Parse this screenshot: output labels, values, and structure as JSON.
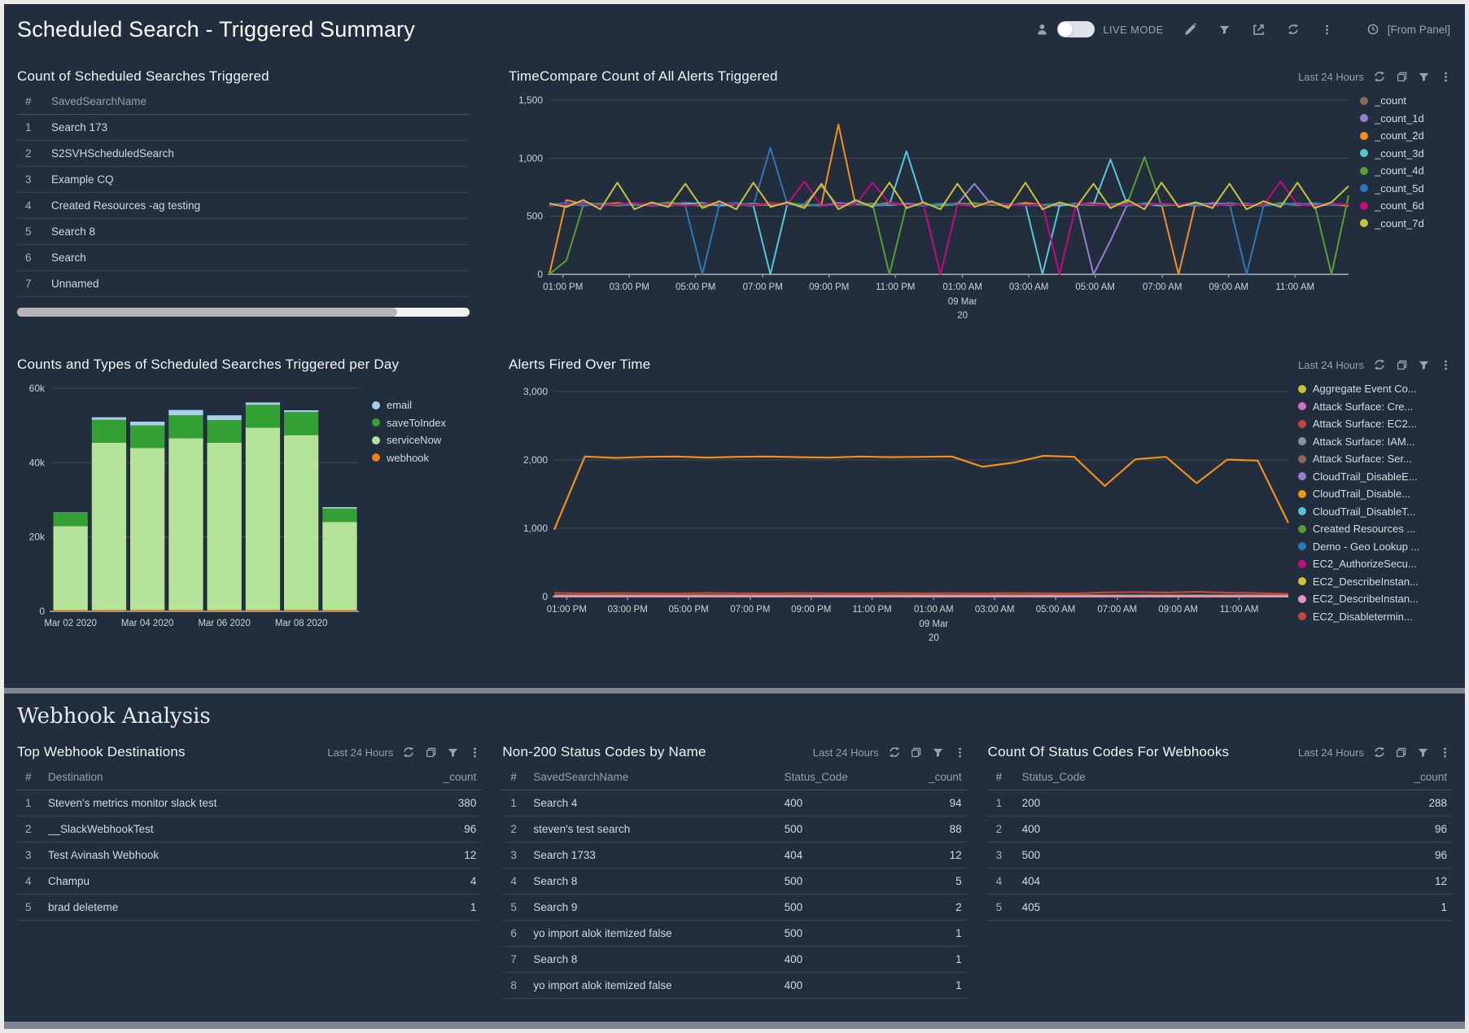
{
  "header": {
    "title": "Scheduled Search - Triggered Summary",
    "live_mode_label": "LIVE MODE",
    "from_panel_label": "[From Panel]"
  },
  "controls": {
    "time_range": "Last 24 Hours"
  },
  "panels": {
    "count_table": {
      "title": "Count of Scheduled Searches Triggered",
      "columns": [
        "#",
        "SavedSearchName"
      ],
      "aligns": [
        "left",
        "left"
      ],
      "rows": [
        [
          "1",
          "Search 173"
        ],
        [
          "2",
          "S2SVHScheduledSearch"
        ],
        [
          "3",
          "Example CQ"
        ],
        [
          "4",
          "Created Resources -ag testing"
        ],
        [
          "5",
          "Search 8"
        ],
        [
          "6",
          "Search"
        ],
        [
          "7",
          "Unnamed"
        ]
      ]
    },
    "timecompare": {
      "title": "TimeCompare Count of All Alerts Triggered"
    },
    "bars": {
      "title": "Counts and Types of Scheduled Searches Triggered per Day"
    },
    "alerts": {
      "title": "Alerts Fired Over Time"
    },
    "webhook_section_title": "Webhook Analysis",
    "top_webhooks": {
      "title": "Top Webhook Destinations",
      "columns": [
        "#",
        "Destination",
        "_count"
      ],
      "aligns": [
        "left",
        "left",
        "right"
      ],
      "rows": [
        [
          "1",
          "Steven's metrics monitor slack test",
          "380"
        ],
        [
          "2",
          "__SlackWebhookTest",
          "96"
        ],
        [
          "3",
          " Test Avinash Webhook",
          "12"
        ],
        [
          "4",
          "Champu",
          "4"
        ],
        [
          "5",
          "brad deleteme",
          "1"
        ]
      ]
    },
    "non200": {
      "title": "Non-200 Status Codes by Name",
      "columns": [
        "#",
        "SavedSearchName",
        "Status_Code",
        "_count"
      ],
      "aligns": [
        "left",
        "left",
        "left",
        "right"
      ],
      "rows": [
        [
          "1",
          "Search 4",
          "400",
          "94"
        ],
        [
          "2",
          "steven's test search",
          "500",
          "88"
        ],
        [
          "3",
          "Search 1733",
          "404",
          "12"
        ],
        [
          "4",
          "Search 8",
          "500",
          "5"
        ],
        [
          "5",
          "Search 9",
          "500",
          "2"
        ],
        [
          "6",
          "yo import alok itemized false",
          "500",
          "1"
        ],
        [
          "7",
          "Search 8",
          "400",
          "1"
        ],
        [
          "8",
          "yo import alok itemized false",
          "400",
          "1"
        ]
      ]
    },
    "status_codes": {
      "title": "Count Of Status Codes For Webhooks",
      "columns": [
        "#",
        "Status_Code",
        "_count"
      ],
      "aligns": [
        "left",
        "left",
        "right"
      ],
      "rows": [
        [
          "1",
          "200",
          "288"
        ],
        [
          "2",
          "400",
          "96"
        ],
        [
          "3",
          "500",
          "96"
        ],
        [
          "4",
          "404",
          "12"
        ],
        [
          "5",
          "405",
          "1"
        ]
      ]
    }
  },
  "chart_data": [
    {
      "type": "line",
      "title": "TimeCompare Count of All Alerts Triggered",
      "ylim": [
        0,
        1500
      ],
      "yticks": [
        {
          "v": 1500,
          "label": "1,500"
        },
        {
          "v": 1000,
          "label": "1,000"
        },
        {
          "v": 500,
          "label": "500"
        },
        {
          "v": 0,
          "label": "0"
        }
      ],
      "xticks": [
        {
          "f": 0.017,
          "label": "01:00 PM"
        },
        {
          "f": 0.1,
          "label": "03:00 PM"
        },
        {
          "f": 0.183,
          "label": "05:00 PM"
        },
        {
          "f": 0.267,
          "label": "07:00 PM"
        },
        {
          "f": 0.35,
          "label": "09:00 PM"
        },
        {
          "f": 0.433,
          "label": "11:00 PM"
        },
        {
          "f": 0.517,
          "label": "01:00 AM",
          "sub": [
            "09 Mar",
            "20"
          ]
        },
        {
          "f": 0.6,
          "label": "03:00 AM"
        },
        {
          "f": 0.683,
          "label": "05:00 AM"
        },
        {
          "f": 0.767,
          "label": "07:00 AM"
        },
        {
          "f": 0.85,
          "label": "09:00 AM"
        },
        {
          "f": 0.933,
          "label": "11:00 AM"
        }
      ],
      "series": [
        {
          "name": "_count",
          "color": "#8a6a5e",
          "values": [
            600,
            610,
            590,
            605,
            615,
            595,
            600,
            620,
            605,
            590,
            610,
            600,
            595,
            615,
            600,
            605,
            760,
            590,
            600,
            610,
            595,
            605,
            600,
            590,
            615,
            600,
            605,
            595,
            610,
            600,
            590,
            605,
            615,
            600,
            595,
            610,
            600,
            605,
            590,
            600,
            615,
            595,
            605,
            600,
            610,
            590,
            600,
            605
          ]
        },
        {
          "name": "_count_1d",
          "color": "#9a7fd1",
          "values": [
            590,
            605,
            615,
            595,
            600,
            610,
            590,
            600,
            615,
            605,
            590,
            600,
            610,
            595,
            605,
            600,
            590,
            615,
            600,
            605,
            595,
            610,
            600,
            590,
            605,
            780,
            600,
            595,
            615,
            600,
            590,
            605,
            0,
            290,
            605,
            595,
            610,
            600,
            590,
            615,
            605,
            600,
            595,
            600,
            610,
            590,
            600,
            595
          ]
        },
        {
          "name": "_count_2d",
          "color": "#f39019",
          "values": [
            0,
            640,
            605,
            590,
            615,
            600,
            595,
            610,
            600,
            590,
            605,
            615,
            595,
            600,
            610,
            590,
            600,
            1290,
            605,
            595,
            615,
            600,
            590,
            610,
            600,
            595,
            605,
            590,
            615,
            600,
            605,
            595,
            610,
            600,
            590,
            605,
            600,
            0,
            615,
            595,
            605,
            600,
            590,
            610,
            595,
            605,
            600,
            590
          ]
        },
        {
          "name": "_count_3d",
          "color": "#55c7d6",
          "values": [
            605,
            590,
            615,
            600,
            595,
            610,
            600,
            590,
            605,
            615,
            595,
            600,
            590,
            0,
            610,
            600,
            595,
            605,
            615,
            590,
            600,
            1060,
            595,
            605,
            600,
            590,
            615,
            600,
            605,
            0,
            590,
            610,
            600,
            990,
            595,
            605,
            590,
            600,
            615,
            600,
            595,
            610,
            590,
            605,
            600,
            595,
            610,
            600
          ]
        },
        {
          "name": "_count_4d",
          "color": "#5a9e33",
          "values": [
            0,
            120,
            600,
            610,
            590,
            605,
            595,
            615,
            600,
            590,
            610,
            600,
            605,
            595,
            615,
            600,
            590,
            605,
            600,
            610,
            0,
            595,
            605,
            590,
            600,
            615,
            595,
            605,
            600,
            590,
            610,
            600,
            595,
            605,
            615,
            1010,
            590,
            600,
            605,
            595,
            610,
            600,
            590,
            615,
            600,
            605,
            0,
            680
          ]
        },
        {
          "name": "_count_5d",
          "color": "#2d78b8",
          "values": [
            600,
            615,
            590,
            605,
            600,
            595,
            610,
            600,
            590,
            0,
            605,
            615,
            595,
            1090,
            600,
            605,
            590,
            600,
            615,
            595,
            605,
            600,
            590,
            610,
            600,
            595,
            615,
            605,
            590,
            600,
            610,
            595,
            605,
            600,
            590,
            615,
            600,
            605,
            595,
            600,
            610,
            0,
            590,
            605,
            600,
            615,
            595,
            605
          ]
        },
        {
          "name": "_count_6d",
          "color": "#c40a82",
          "values": [
            595,
            600,
            610,
            590,
            605,
            615,
            595,
            600,
            590,
            605,
            615,
            600,
            595,
            610,
            600,
            800,
            590,
            605,
            600,
            790,
            615,
            595,
            605,
            0,
            600,
            590,
            610,
            600,
            595,
            605,
            0,
            615,
            600,
            590,
            605,
            595,
            610,
            600,
            615,
            590,
            600,
            605,
            595,
            800,
            600,
            590,
            610,
            600
          ]
        },
        {
          "name": "_count_7d",
          "color": "#c9c33a",
          "values": [
            610,
            580,
            640,
            560,
            790,
            560,
            620,
            580,
            780,
            570,
            630,
            560,
            790,
            580,
            620,
            570,
            780,
            560,
            640,
            580,
            790,
            570,
            620,
            560,
            780,
            580,
            630,
            570,
            790,
            560,
            620,
            580,
            780,
            570,
            640,
            560,
            790,
            580,
            620,
            570,
            780,
            560,
            630,
            580,
            790,
            570,
            620,
            760
          ]
        }
      ]
    },
    {
      "type": "bar",
      "title": "Counts and Types of Scheduled Searches Triggered per Day",
      "ylim": [
        0,
        60000
      ],
      "yticks": [
        {
          "v": 60000,
          "label": "60k"
        },
        {
          "v": 40000,
          "label": "40k"
        },
        {
          "v": 20000,
          "label": "20k"
        },
        {
          "v": 0,
          "label": "0"
        }
      ],
      "categories": [
        "Mar 02 2020",
        "Mar 03 2020",
        "Mar 04 2020",
        "Mar 05 2020",
        "Mar 06 2020",
        "Mar 07 2020",
        "Mar 08 2020",
        "Mar 09 2020"
      ],
      "xticks": [
        {
          "i": 0,
          "label": "Mar 02 2020"
        },
        {
          "i": 2,
          "label": "Mar 04 2020"
        },
        {
          "i": 4,
          "label": "Mar 06 2020"
        },
        {
          "i": 6,
          "label": "Mar 08 2020"
        }
      ],
      "stack_order": [
        "webhook",
        "serviceNow",
        "saveToIndex",
        "email"
      ],
      "series": [
        {
          "name": "email",
          "color": "#a8cfe8",
          "values": [
            120,
            680,
            1000,
            1450,
            1300,
            650,
            450,
            380
          ]
        },
        {
          "name": "saveToIndex",
          "color": "#33a033",
          "values": [
            3550,
            6150,
            6050,
            6150,
            6050,
            6150,
            6250,
            3600
          ]
        },
        {
          "name": "serviceNow",
          "color": "#b6e39a",
          "values": [
            22600,
            45000,
            43600,
            46200,
            45000,
            49000,
            47000,
            23700
          ]
        },
        {
          "name": "webhook",
          "color": "#f57f0b",
          "values": [
            350,
            380,
            380,
            380,
            380,
            380,
            380,
            350
          ]
        }
      ]
    },
    {
      "type": "line",
      "title": "Alerts Fired Over Time",
      "ylim": [
        0,
        3000
      ],
      "yticks": [
        {
          "v": 3000,
          "label": "3,000"
        },
        {
          "v": 2000,
          "label": "2,000"
        },
        {
          "v": 1000,
          "label": "1,000"
        },
        {
          "v": 0,
          "label": "0"
        }
      ],
      "xticks": [
        {
          "f": 0.017,
          "label": "01:00 PM"
        },
        {
          "f": 0.1,
          "label": "03:00 PM"
        },
        {
          "f": 0.183,
          "label": "05:00 PM"
        },
        {
          "f": 0.267,
          "label": "07:00 PM"
        },
        {
          "f": 0.35,
          "label": "09:00 PM"
        },
        {
          "f": 0.433,
          "label": "11:00 PM"
        },
        {
          "f": 0.517,
          "label": "01:00 AM",
          "sub": [
            "09 Mar",
            "20"
          ]
        },
        {
          "f": 0.6,
          "label": "03:00 AM"
        },
        {
          "f": 0.683,
          "label": "05:00 AM"
        },
        {
          "f": 0.767,
          "label": "07:00 AM"
        },
        {
          "f": 0.85,
          "label": "09:00 AM"
        },
        {
          "f": 0.933,
          "label": "11:00 AM"
        }
      ],
      "series": [
        {
          "name": "Aggregate Event Co...",
          "color": "#c9c33a",
          "flat": 8
        },
        {
          "name": "Attack Surface: Cre...",
          "color": "#cd6fc5",
          "flat": 6
        },
        {
          "name": "Attack Surface: EC2...",
          "color": "#c8453c",
          "flat": 18
        },
        {
          "name": "Attack Surface: IAM...",
          "color": "#8d9198",
          "flat": 12
        },
        {
          "name": "Attack Surface: Ser...",
          "color": "#8a6a5e",
          "flat": 22
        },
        {
          "name": "CloudTrail_DisableE...",
          "color": "#9a7fd1",
          "flat": 5
        },
        {
          "name": "CloudTrail_Disable...",
          "color": "#f39019",
          "values": [
            980,
            2050,
            2030,
            2045,
            2050,
            2035,
            2045,
            2050,
            2040,
            2035,
            2050,
            2040,
            2045,
            2050,
            1900,
            1960,
            2060,
            2045,
            1620,
            2010,
            2045,
            1660,
            2005,
            1990,
            1080
          ]
        },
        {
          "name": "CloudTrail_DisableT...",
          "color": "#55c7d6",
          "flat": 10
        },
        {
          "name": "Created Resources ...",
          "color": "#5a9e33",
          "flat": 15
        },
        {
          "name": "Demo - Geo Lookup ...",
          "color": "#2d78b8",
          "flat": 7
        },
        {
          "name": "EC2_AuthorizeSecu...",
          "color": "#c40a82",
          "flat": 5
        },
        {
          "name": "EC2_DescribeInstan...",
          "color": "#c9c33a",
          "flat": 9
        },
        {
          "name": "EC2_DescribeInstan...",
          "color": "#e394cd",
          "flat": 4
        },
        {
          "name": "EC2_Disabletermin...",
          "color": "#c8453c",
          "values": [
            55,
            48,
            52,
            50,
            47,
            53,
            50,
            48,
            52,
            50,
            47,
            52,
            49,
            51,
            48,
            52,
            50,
            47,
            62,
            68,
            60,
            72,
            58,
            52,
            40
          ]
        }
      ]
    }
  ]
}
